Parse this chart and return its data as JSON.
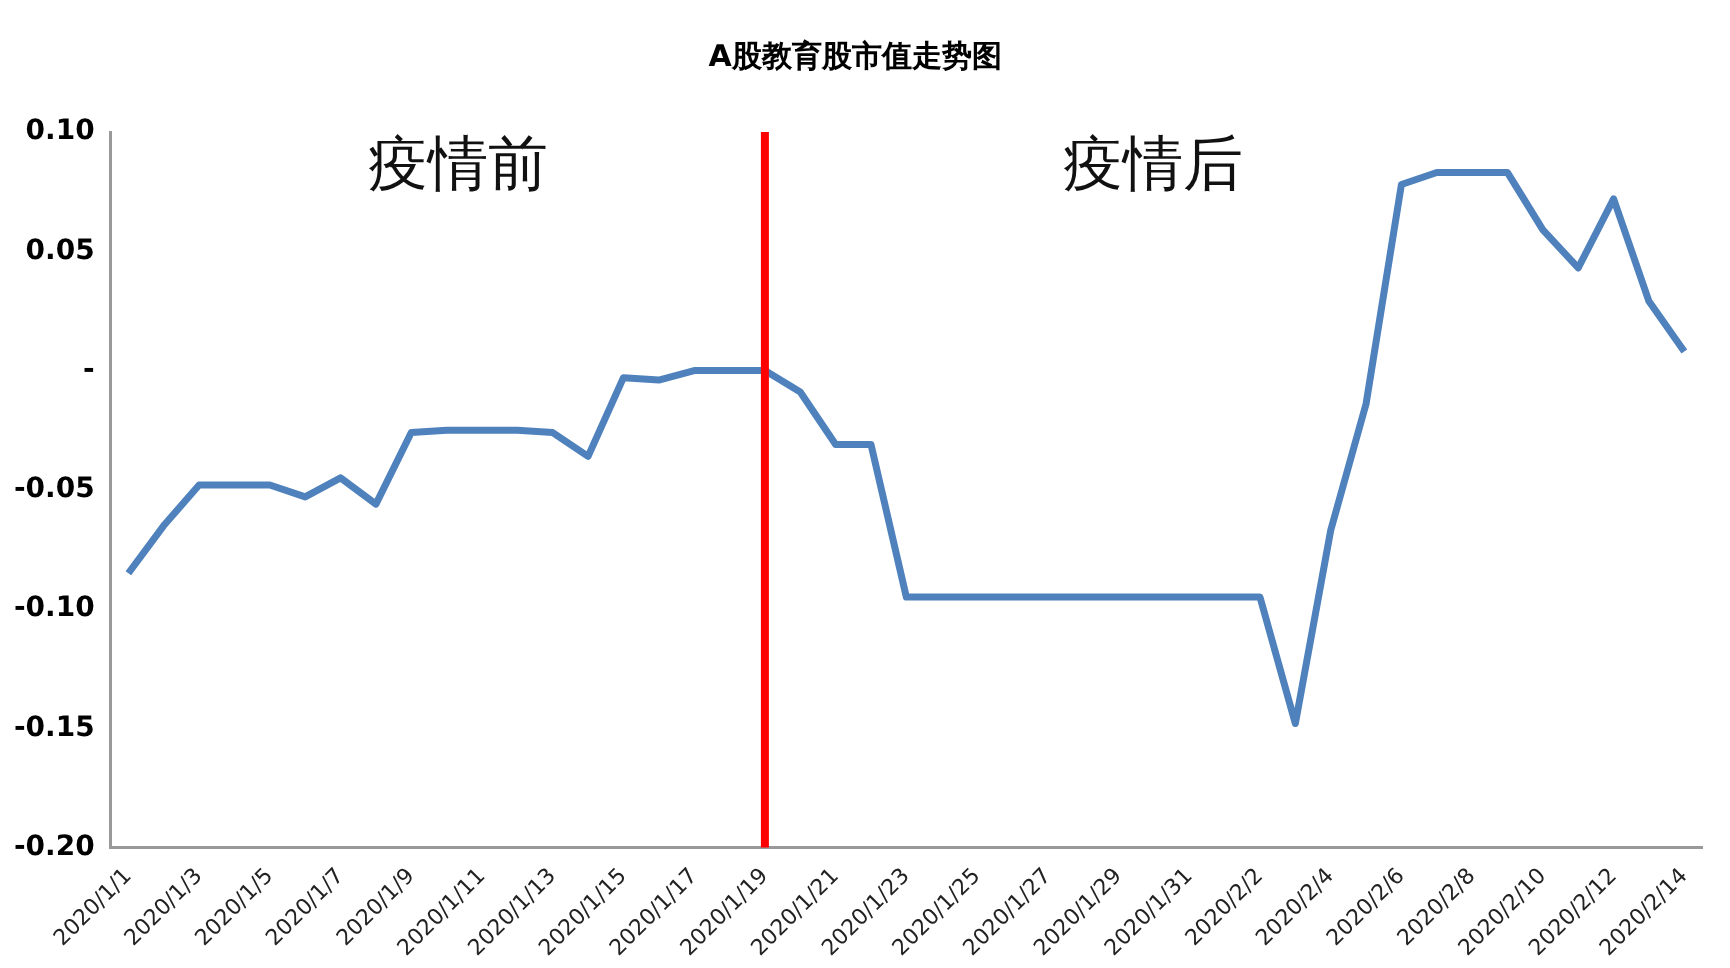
{
  "chart_data": {
    "type": "line",
    "title": "A股教育股市值走势图",
    "categories": [
      "2020/1/1",
      null,
      "2020/1/3",
      null,
      "2020/1/5",
      null,
      "2020/1/7",
      null,
      "2020/1/9",
      null,
      "2020/1/11",
      null,
      "2020/1/13",
      null,
      "2020/1/15",
      null,
      "2020/1/17",
      null,
      "2020/1/19",
      null,
      "2020/1/21",
      null,
      "2020/1/23",
      null,
      "2020/1/25",
      null,
      "2020/1/27",
      null,
      "2020/1/29",
      null,
      "2020/1/31",
      null,
      "2020/2/2",
      null,
      "2020/2/4",
      null,
      "2020/2/6",
      null,
      "2020/2/8",
      null,
      "2020/2/10",
      null,
      "2020/2/12",
      null,
      "2020/2/14"
    ],
    "series": [
      {
        "color": "#4f81bd",
        "values": [
          -0.085,
          -0.065,
          -0.048,
          -0.048,
          -0.048,
          -0.053,
          -0.045,
          -0.056,
          -0.026,
          -0.025,
          -0.025,
          -0.025,
          -0.026,
          -0.036,
          -0.003,
          -0.004,
          0,
          0,
          0,
          -0.009,
          -0.031,
          -0.031,
          -0.095,
          -0.095,
          -0.095,
          -0.095,
          -0.095,
          -0.095,
          -0.095,
          -0.095,
          -0.095,
          -0.095,
          -0.095,
          -0.148,
          -0.067,
          -0.014,
          0.078,
          0.083,
          0.083,
          0.083,
          0.059,
          0.043,
          0.072,
          0.029,
          0.008
        ]
      }
    ],
    "ylim": [
      -0.2,
      0.1
    ],
    "yticks": [
      {
        "value": 0.1,
        "label": "0.10"
      },
      0.05,
      {
        "value": 0,
        "label": "-"
      },
      -0.05,
      {
        "value": -0.1,
        "label": "-0.10"
      },
      -0.15,
      {
        "value": -0.2,
        "label": "-0.20"
      }
    ],
    "ref_lines": [
      {
        "axis": "x",
        "value": "2020/1/19",
        "color": "#ff0000"
      }
    ],
    "annotations": [
      "疫情前",
      "疫情后"
    ],
    "marker": "none",
    "line_style": "solid",
    "grid": false,
    "legend": false
  }
}
